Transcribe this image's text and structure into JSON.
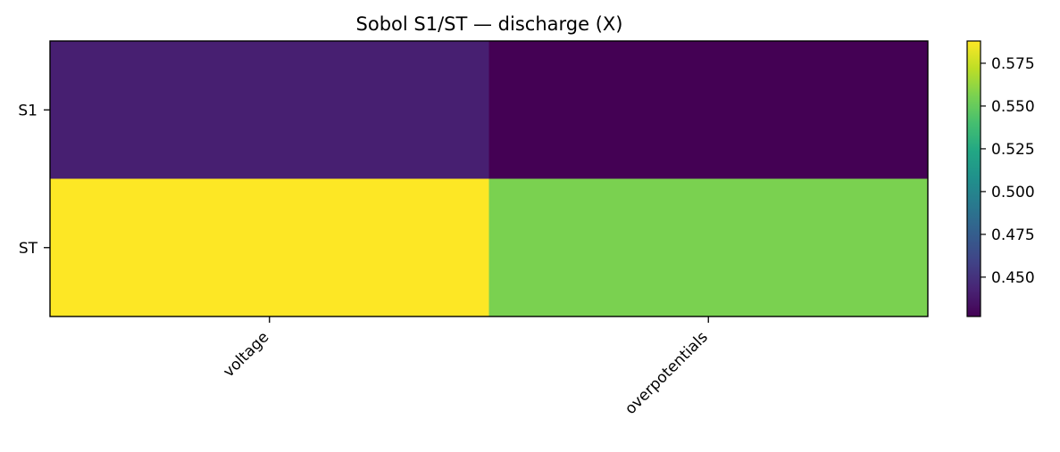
{
  "chart_data": {
    "type": "heatmap",
    "title": "Sobol S1/ST — discharge (X)",
    "x_categories": [
      "voltage",
      "overpotentials"
    ],
    "y_categories": [
      "S1",
      "ST"
    ],
    "values": [
      [
        0.441,
        0.427
      ],
      [
        0.588,
        0.556
      ]
    ],
    "colormap": "viridis",
    "vmin": 0.427,
    "vmax": 0.588,
    "colorbar": {
      "ticks": [
        0.45,
        0.475,
        0.5,
        0.525,
        0.55,
        0.575
      ],
      "tick_labels": [
        "0.450",
        "0.475",
        "0.500",
        "0.525",
        "0.550",
        "0.575"
      ]
    },
    "xlabel": "",
    "ylabel": "",
    "grid": false
  }
}
